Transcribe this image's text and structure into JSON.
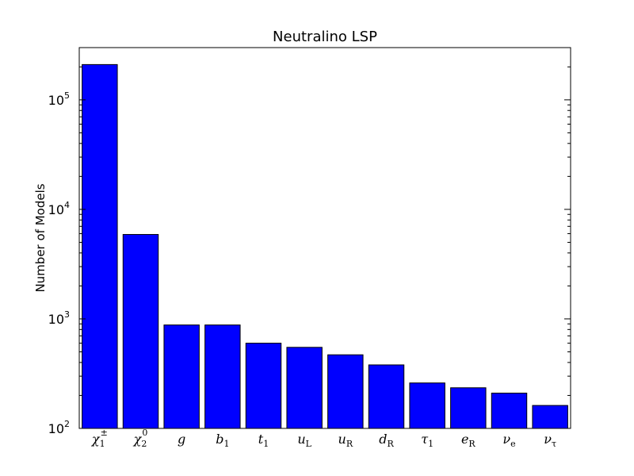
{
  "chart_data": {
    "type": "bar",
    "title": "Neutralino LSP",
    "xlabel": "",
    "ylabel": "Number of Models",
    "yscale": "log",
    "ylim": [
      100,
      300000
    ],
    "ytick_values": [
      100,
      1000,
      10000,
      100000
    ],
    "ytick_labels": [
      {
        "base": "10",
        "exp": "2"
      },
      {
        "base": "10",
        "exp": "3"
      },
      {
        "base": "10",
        "exp": "4"
      },
      {
        "base": "10",
        "exp": "5"
      }
    ],
    "grid": false,
    "bar_color": "#0000ff",
    "categories": [
      {
        "base": "χ",
        "sub": "1",
        "sup": "±"
      },
      {
        "base": "χ",
        "sub": "2",
        "sup": "0"
      },
      {
        "base": "g",
        "sub": "",
        "sup": ""
      },
      {
        "base": "b",
        "sub": "1",
        "sup": ""
      },
      {
        "base": "t",
        "sub": "1",
        "sup": ""
      },
      {
        "base": "u",
        "sub": "L",
        "sup": ""
      },
      {
        "base": "u",
        "sub": "R",
        "sup": ""
      },
      {
        "base": "d",
        "sub": "R",
        "sup": ""
      },
      {
        "base": "τ",
        "sub": "1",
        "sup": ""
      },
      {
        "base": "e",
        "sub": "R",
        "sup": ""
      },
      {
        "base": "ν",
        "sub": "e",
        "sup": ""
      },
      {
        "base": "ν",
        "sub": "τ",
        "sup": ""
      }
    ],
    "values": [
      210000,
      5900,
      880,
      880,
      600,
      550,
      470,
      380,
      260,
      235,
      210,
      162
    ]
  }
}
